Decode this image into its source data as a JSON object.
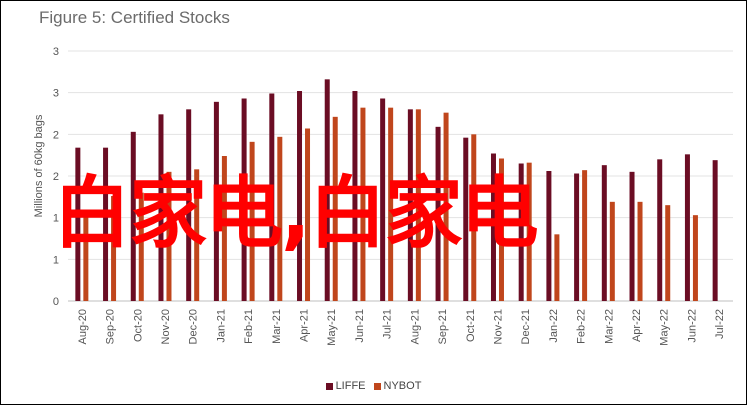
{
  "chart_data": {
    "type": "bar",
    "title": "Figure 5: Certified Stocks",
    "ylabel": "Millions of 60kg bags",
    "xlabel": "",
    "ylim": [
      0,
      3
    ],
    "y_ticks": [
      0,
      0.5,
      1,
      1.5,
      2,
      2.5,
      3
    ],
    "y_tick_labels": [
      "0",
      "1",
      "1",
      "2",
      "2",
      "3",
      "3"
    ],
    "grid": "horizontal",
    "legend_position": "bottom",
    "categories": [
      "Aug-20",
      "Sep-20",
      "Oct-20",
      "Nov-20",
      "Dec-20",
      "Jan-21",
      "Feb-21",
      "Mar-21",
      "Apr-21",
      "May-21",
      "Jun-21",
      "Jul-21",
      "Aug-21",
      "Sep-21",
      "Oct-21",
      "Nov-21",
      "Dec-21",
      "Jan-22",
      "Feb-22",
      "Mar-22",
      "Apr-22",
      "May-22",
      "Jun-22",
      "Jul-22"
    ],
    "series": [
      {
        "name": "LIFFE",
        "color": "#6b0d24",
        "values": [
          1.84,
          1.84,
          2.03,
          2.24,
          2.3,
          2.39,
          2.43,
          2.49,
          2.52,
          2.66,
          2.52,
          2.43,
          2.3,
          2.09,
          1.96,
          1.77,
          1.65,
          1.56,
          1.53,
          1.63,
          1.55,
          1.7,
          1.76,
          1.69
        ]
      },
      {
        "name": "NYBOT",
        "color": "#c0461c",
        "values": [
          1.05,
          1.26,
          1.3,
          1.55,
          1.58,
          1.74,
          1.91,
          1.97,
          2.07,
          2.21,
          2.32,
          2.32,
          2.3,
          2.26,
          2.0,
          1.71,
          1.66,
          0.8,
          1.57,
          1.19,
          1.19,
          1.15,
          1.03,
          null
        ]
      }
    ]
  },
  "watermark": {
    "text": "白家电,白家电",
    "color": "#ff0000"
  }
}
